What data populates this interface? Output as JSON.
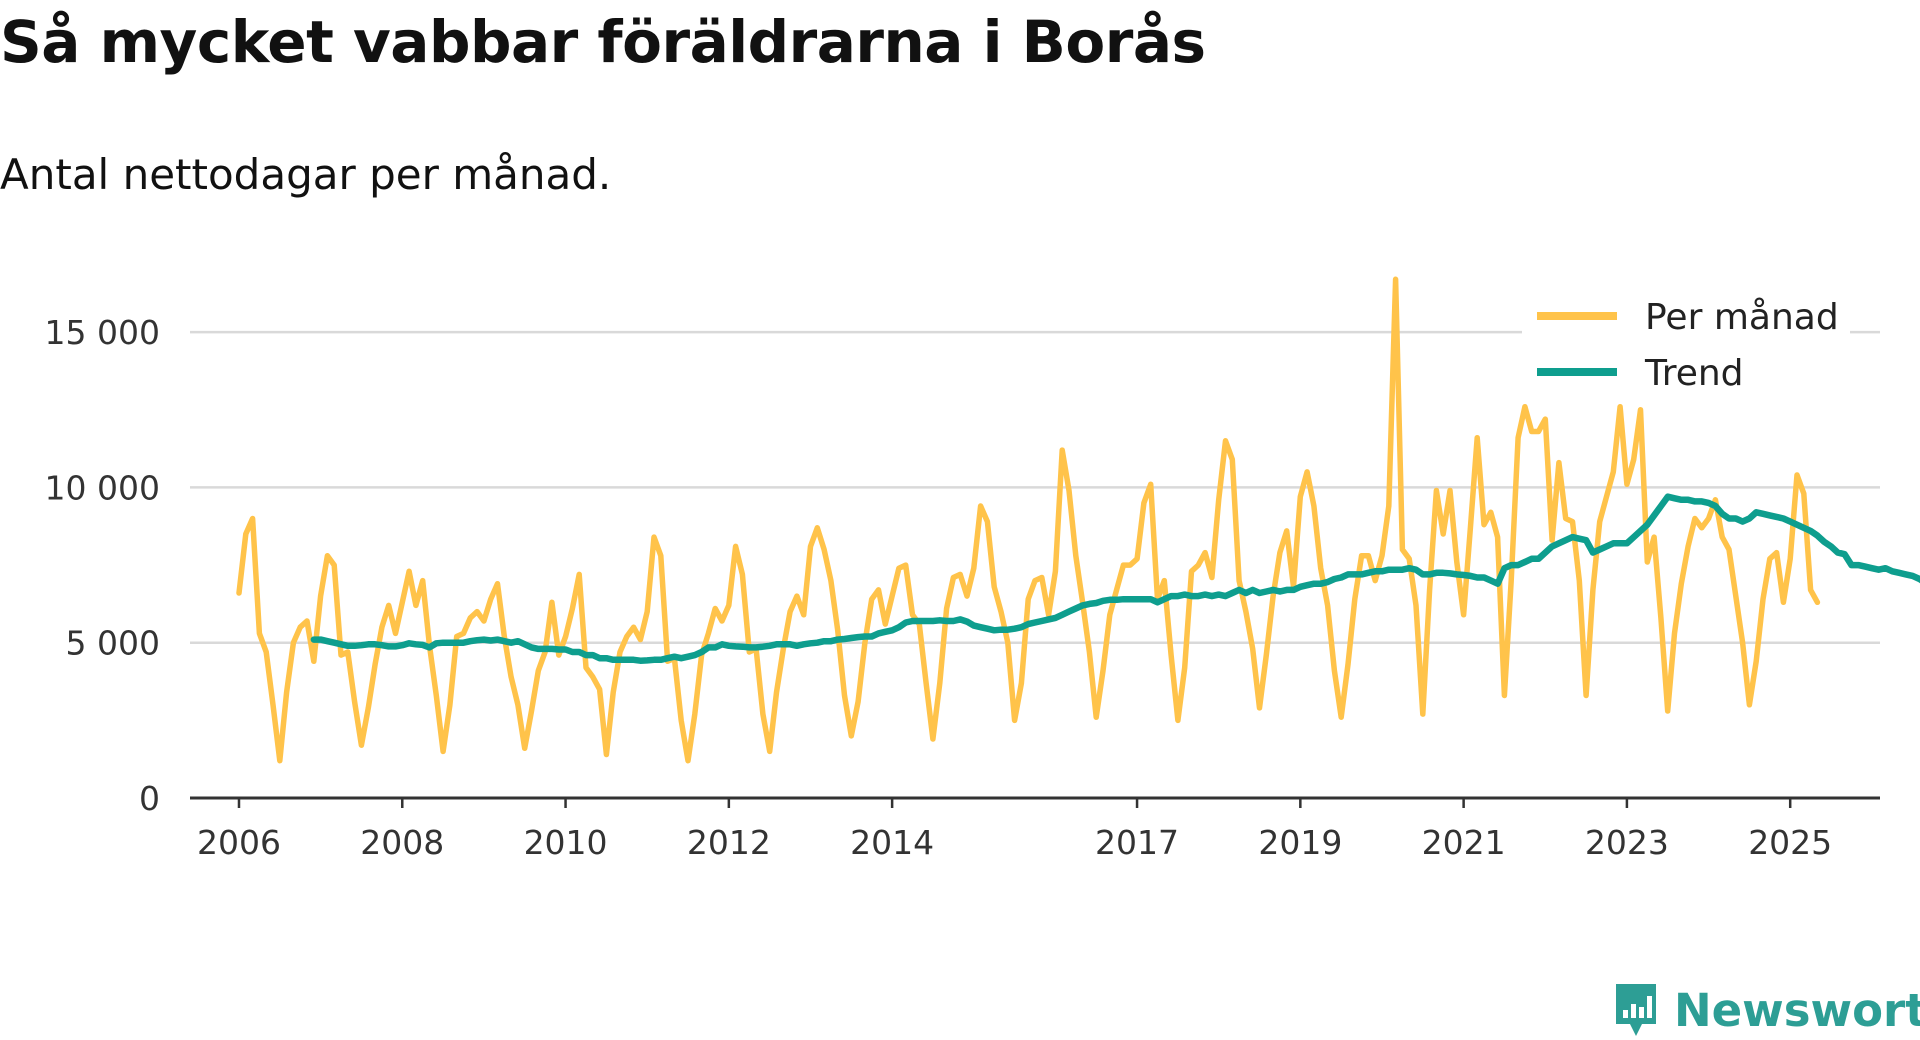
{
  "title": "Så mycket vabbar föräldrarna i Borås",
  "subtitle": "Antal nettodagar per månad.",
  "brand": {
    "name": "Newsworthy",
    "icon": "newsworthy-logo-icon"
  },
  "colors": {
    "monthly": "#FFC34A",
    "trend": "#0E9E8E",
    "grid": "#D9D9D9",
    "axis": "#333333",
    "brand": "#2D9E95"
  },
  "chart_data": {
    "type": "line",
    "title": "Så mycket vabbar föräldrarna i Borås",
    "subtitle": "Antal nettodagar per månad.",
    "xlabel": "",
    "ylabel": "",
    "xlim": [
      2005.4,
      2026.1
    ],
    "ylim": [
      0,
      17000
    ],
    "grid": true,
    "legend_position": "top-right",
    "y_ticks": [
      0,
      5000,
      10000,
      15000
    ],
    "y_tick_labels": [
      "0",
      "5 000",
      "10 000",
      "15 000"
    ],
    "x_ticks": [
      2006,
      2008,
      2010,
      2012,
      2014,
      2017,
      2019,
      2021,
      2023,
      2025
    ],
    "x_tick_labels": [
      "2006",
      "2008",
      "2010",
      "2012",
      "2014",
      "2017",
      "2019",
      "2021",
      "2023",
      "2025"
    ],
    "series": [
      {
        "name": "Per månad",
        "start": 2006.0,
        "step_months": 1,
        "values": [
          6600,
          8500,
          9000,
          5300,
          4700,
          3000,
          1200,
          3400,
          5000,
          5500,
          5700,
          4400,
          6500,
          7800,
          7500,
          4600,
          4700,
          3100,
          1700,
          2900,
          4300,
          5500,
          6200,
          5300,
          6300,
          7300,
          6200,
          7000,
          4900,
          3300,
          1500,
          3000,
          5200,
          5300,
          5800,
          6000,
          5700,
          6400,
          6900,
          5200,
          3900,
          3000,
          1600,
          2800,
          4100,
          4700,
          6300,
          4600,
          5200,
          6100,
          7200,
          4200,
          3900,
          3500,
          1400,
          3400,
          4700,
          5200,
          5500,
          5100,
          6000,
          8400,
          7800,
          4400,
          4500,
          2500,
          1200,
          2700,
          4600,
          5300,
          6100,
          5700,
          6200,
          8100,
          7200,
          4700,
          4800,
          2700,
          1500,
          3400,
          4800,
          6000,
          6500,
          5900,
          8100,
          8700,
          8000,
          7000,
          5400,
          3300,
          2000,
          3100,
          5000,
          6400,
          6700,
          5600,
          6500,
          7400,
          7500,
          5900,
          5600,
          3700,
          1900,
          3700,
          6100,
          7100,
          7200,
          6500,
          7400,
          9400,
          8900,
          6800,
          6000,
          5000,
          2500,
          3700,
          6400,
          7000,
          7100,
          5900,
          7300,
          11200,
          9900,
          7800,
          6300,
          4700,
          2600,
          4100,
          5900,
          6700,
          7500,
          7500,
          7700,
          9500,
          10100,
          6400,
          7000,
          4600,
          2500,
          4200,
          7300,
          7500,
          7900,
          7100,
          9600,
          11500,
          10900,
          7000,
          6000,
          4800,
          2900,
          4600,
          6500,
          7900,
          8600,
          6800,
          9700,
          10500,
          9400,
          7400,
          6200,
          4100,
          2600,
          4300,
          6400,
          7800,
          7800,
          7000,
          7800,
          9400,
          16700,
          8000,
          7700,
          6200,
          2700,
          6700,
          9900,
          8500,
          9900,
          7600,
          5900,
          8700,
          11600,
          8800,
          9200,
          8400,
          3300,
          7000,
          11600,
          12600,
          11800,
          11800,
          12200,
          8300,
          10800,
          9000,
          8900,
          7000,
          3300,
          6700,
          8900,
          9700,
          10500,
          12600,
          10100,
          10900,
          12500,
          7600,
          8400,
          5800,
          2800,
          5300,
          6900,
          8100,
          9000,
          8700,
          9000,
          9600,
          8400,
          8000,
          6500,
          5000,
          3000,
          4400,
          6400,
          7700,
          7900,
          6300,
          7700,
          10400,
          9800,
          6700,
          6300
        ],
        "color": "#FFC34A"
      },
      {
        "name": "Trend",
        "start": 2006.917,
        "step_months": 1,
        "values": [
          5100,
          5100,
          5050,
          5000,
          4950,
          4900,
          4900,
          4920,
          4950,
          4950,
          4920,
          4880,
          4880,
          4920,
          4980,
          4950,
          4930,
          4850,
          4980,
          5000,
          5000,
          5000,
          5000,
          5050,
          5080,
          5100,
          5070,
          5100,
          5050,
          5000,
          5050,
          4950,
          4850,
          4800,
          4800,
          4800,
          4780,
          4780,
          4700,
          4700,
          4600,
          4600,
          4500,
          4500,
          4450,
          4450,
          4450,
          4450,
          4420,
          4430,
          4450,
          4450,
          4500,
          4550,
          4500,
          4550,
          4600,
          4700,
          4850,
          4850,
          4950,
          4900,
          4880,
          4870,
          4850,
          4850,
          4870,
          4900,
          4950,
          4950,
          4950,
          4900,
          4950,
          4980,
          5000,
          5050,
          5050,
          5100,
          5120,
          5150,
          5180,
          5200,
          5200,
          5300,
          5350,
          5400,
          5500,
          5650,
          5700,
          5700,
          5700,
          5700,
          5720,
          5700,
          5700,
          5750,
          5680,
          5550,
          5500,
          5450,
          5400,
          5420,
          5420,
          5450,
          5500,
          5600,
          5650,
          5700,
          5750,
          5800,
          5900,
          6000,
          6100,
          6200,
          6250,
          6280,
          6350,
          6380,
          6380,
          6400,
          6400,
          6400,
          6400,
          6400,
          6300,
          6400,
          6500,
          6500,
          6550,
          6500,
          6500,
          6550,
          6500,
          6550,
          6500,
          6600,
          6700,
          6600,
          6700,
          6600,
          6650,
          6700,
          6650,
          6700,
          6700,
          6800,
          6850,
          6900,
          6900,
          6950,
          7050,
          7100,
          7200,
          7200,
          7200,
          7250,
          7300,
          7300,
          7350,
          7350,
          7350,
          7400,
          7350,
          7200,
          7200,
          7250,
          7250,
          7230,
          7200,
          7180,
          7150,
          7100,
          7100,
          7000,
          6900,
          7400,
          7500,
          7500,
          7600,
          7700,
          7700,
          7900,
          8100,
          8200,
          8300,
          8400,
          8350,
          8300,
          7900,
          8000,
          8100,
          8200,
          8200,
          8200,
          8400,
          8600,
          8800,
          9100,
          9400,
          9700,
          9650,
          9600,
          9600,
          9550,
          9550,
          9500,
          9400,
          9150,
          9000,
          9000,
          8900,
          9000,
          9200,
          9150,
          9100,
          9050,
          9000,
          8900,
          8800,
          8700,
          8600,
          8450,
          8250,
          8100,
          7900,
          7850,
          7500,
          7500,
          7450,
          7400,
          7350,
          7400,
          7300,
          7250,
          7200,
          7150,
          7050,
          6900,
          6950,
          7050,
          6950,
          6900
        ],
        "color": "#0E9E8E"
      }
    ]
  }
}
